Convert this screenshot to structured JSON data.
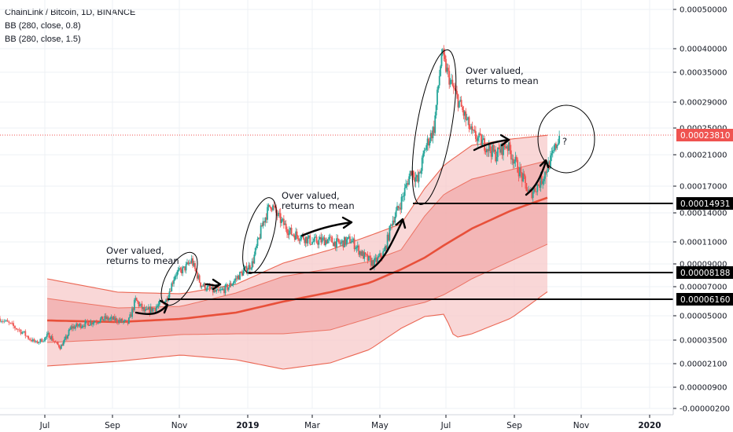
{
  "legend": {
    "symbol": "ChainLink / Bitcoin, 1D, BINANCE",
    "bb1": "BB (280, close, 0.8)",
    "bb2": "BB (280, close, 1.5)"
  },
  "colors": {
    "candle_up": "#26a69a",
    "candle_down": "#ef5350",
    "basis": "#e8503a",
    "band_outer": "#f7c9c9",
    "band_inner": "#f1a8a8",
    "price_tag": "#ef5350",
    "level_tag": "#000000"
  },
  "chart_data": {
    "type": "candlestick",
    "title": "ChainLink / Bitcoin, 1D, BINANCE",
    "indicators": [
      "BB (280, close, 0.8)",
      "BB (280, close, 1.5)"
    ],
    "y_scale": "log",
    "y_ticks": [
      "0.00050000",
      "0.00040000",
      "0.00035000",
      "0.00029000",
      "0.00025000",
      "0.00021000",
      "0.00017000",
      "0.00014000",
      "0.00011000",
      "0.00009000",
      "0.00007000",
      "0.00005000",
      "0.00003500",
      "0.00002100",
      "0.00000900",
      "-0.00000200"
    ],
    "x_ticks": [
      "Jul",
      "Sep",
      "Nov",
      "2019",
      "Mar",
      "May",
      "Jul",
      "Sep",
      "Nov",
      "2020"
    ],
    "x_range": [
      "2018-06-01",
      "2020-01-15"
    ],
    "last_price": "0.00023810",
    "horizontal_levels": [
      "0.00014931",
      "0.00008188",
      "0.00006160"
    ],
    "annotations": [
      {
        "text_line1": "Over valued,",
        "text_line2": "returns to mean"
      },
      {
        "text_line1": "Over valued,",
        "text_line2": "returns to mean"
      },
      {
        "text_line1": "Over valued,",
        "text_line2": "returns to mean"
      },
      {
        "text_line1": "?",
        "text_line2": ""
      }
    ],
    "price_path": [
      [
        "2018-06-01",
        4.8e-05
      ],
      [
        "2018-06-15",
        4e-05
      ],
      [
        "2018-06-25",
        3.3e-05
      ],
      [
        "2018-07-05",
        3.8e-05
      ],
      [
        "2018-07-15",
        3e-05
      ],
      [
        "2018-07-25",
        4.2e-05
      ],
      [
        "2018-08-05",
        4.4e-05
      ],
      [
        "2018-08-15",
        4.6e-05
      ],
      [
        "2018-08-25",
        4.8e-05
      ],
      [
        "2018-09-05",
        4.7e-05
      ],
      [
        "2018-09-15",
        4.5e-05
      ],
      [
        "2018-09-22",
        6e-05
      ],
      [
        "2018-10-01",
        5.2e-05
      ],
      [
        "2018-10-10",
        5.5e-05
      ],
      [
        "2018-10-20",
        6e-05
      ],
      [
        "2018-10-28",
        8e-05
      ],
      [
        "2018-11-05",
        8.5e-05
      ],
      [
        "2018-11-12",
        9.3e-05
      ],
      [
        "2018-11-20",
        7.2e-05
      ],
      [
        "2018-11-28",
        6.8e-05
      ],
      [
        "2018-12-05",
        6.5e-05
      ],
      [
        "2018-12-15",
        7e-05
      ],
      [
        "2018-12-25",
        8e-05
      ],
      [
        "2019-01-05",
        9e-05
      ],
      [
        "2019-01-15",
        0.00013
      ],
      [
        "2019-01-22",
        0.00015
      ],
      [
        "2019-02-01",
        0.00013
      ],
      [
        "2019-02-10",
        0.000118
      ],
      [
        "2019-02-20",
        0.000115
      ],
      [
        "2019-03-01",
        0.00011
      ],
      [
        "2019-03-15",
        0.000112
      ],
      [
        "2019-03-25",
        0.000108
      ],
      [
        "2019-04-05",
        0.000112
      ],
      [
        "2019-04-15",
        9.8e-05
      ],
      [
        "2019-04-25",
        9e-05
      ],
      [
        "2019-05-05",
        0.0001
      ],
      [
        "2019-05-12",
        0.00013
      ],
      [
        "2019-05-20",
        0.00015
      ],
      [
        "2019-05-30",
        0.00019
      ],
      [
        "2019-06-05",
        0.000175
      ],
      [
        "2019-06-12",
        0.00022
      ],
      [
        "2019-06-20",
        0.00025
      ],
      [
        "2019-06-27",
        0.00039
      ],
      [
        "2019-07-05",
        0.00033
      ],
      [
        "2019-07-15",
        0.00028
      ],
      [
        "2019-07-25",
        0.00024
      ],
      [
        "2019-08-05",
        0.000225
      ],
      [
        "2019-08-15",
        0.00021
      ],
      [
        "2019-08-25",
        0.000225
      ],
      [
        "2019-09-05",
        0.00019
      ],
      [
        "2019-09-15",
        0.00016
      ],
      [
        "2019-09-25",
        0.000175
      ],
      [
        "2019-10-05",
        0.000205
      ],
      [
        "2019-10-12",
        0.000238
      ]
    ]
  }
}
